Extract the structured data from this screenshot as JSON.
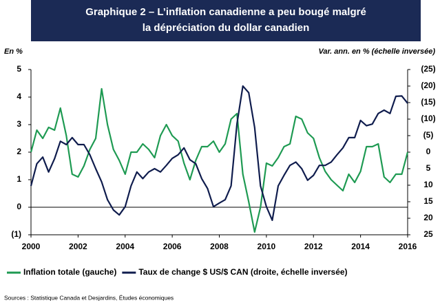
{
  "chart_data": {
    "type": "line",
    "title": [
      "Graphique 2 – L’inflation canadienne a peu bougé malgré",
      "la dépréciation du dollar canadien"
    ],
    "ylabel": "En %",
    "y2label": "Var. ann. en % (échelle inversée)",
    "source": "Sources : Statistique Canada et Desjardins, Études économiques",
    "x": [
      2000,
      2000.25,
      2000.5,
      2000.75,
      2001,
      2001.25,
      2001.5,
      2001.75,
      2002,
      2002.25,
      2002.5,
      2002.75,
      2003,
      2003.25,
      2003.5,
      2003.75,
      2004,
      2004.25,
      2004.5,
      2004.75,
      2005,
      2005.25,
      2005.5,
      2005.75,
      2006,
      2006.25,
      2006.5,
      2006.75,
      2007,
      2007.25,
      2007.5,
      2007.75,
      2008,
      2008.25,
      2008.5,
      2008.75,
      2009,
      2009.25,
      2009.5,
      2009.75,
      2010,
      2010.25,
      2010.5,
      2010.75,
      2011,
      2011.25,
      2011.5,
      2011.75,
      2012,
      2012.25,
      2012.5,
      2012.75,
      2013,
      2013.25,
      2013.5,
      2013.75,
      2014,
      2014.25,
      2014.5,
      2014.75,
      2015,
      2015.25,
      2015.5,
      2015.75,
      2016
    ],
    "series": [
      {
        "name": "Inflation totale (gauche)",
        "color": "#1e9a52",
        "axis": "y",
        "values": [
          2.0,
          2.8,
          2.5,
          2.9,
          2.8,
          3.6,
          2.6,
          1.2,
          1.1,
          1.5,
          2.1,
          2.5,
          4.3,
          3.0,
          2.1,
          1.7,
          1.2,
          2.0,
          2.0,
          2.3,
          2.1,
          1.8,
          2.6,
          3.0,
          2.6,
          2.4,
          1.6,
          1.0,
          1.7,
          2.2,
          2.2,
          2.4,
          2.0,
          2.3,
          3.2,
          3.4,
          1.2,
          0.2,
          -0.9,
          0.0,
          1.6,
          1.5,
          1.8,
          2.2,
          2.3,
          3.3,
          3.2,
          2.7,
          2.5,
          1.8,
          1.3,
          1.0,
          0.8,
          0.6,
          1.2,
          0.9,
          1.3,
          2.2,
          2.2,
          2.3,
          1.1,
          0.9,
          1.2,
          1.2,
          2.0
        ]
      },
      {
        "name": "Taux de change $ US/$ CAN (droite, échelle inversée)",
        "color": "#0f1c4d",
        "axis": "y2",
        "values": [
          10.2,
          3.5,
          1.5,
          6,
          2,
          -3.3,
          -2.3,
          -4.4,
          -2.3,
          -2.3,
          0.8,
          5,
          9,
          14.4,
          17.5,
          19,
          16.5,
          10.2,
          6,
          8,
          6,
          5,
          6,
          4,
          1.9,
          0.8,
          -1.3,
          2.3,
          3.5,
          8,
          11,
          16.5,
          15.4,
          14.4,
          10.2,
          -8.5,
          -20,
          -18,
          -7.5,
          10.2,
          16.5,
          20.6,
          10.2,
          7,
          4,
          3,
          5,
          8.5,
          7,
          4,
          4,
          3,
          0.8,
          -1.3,
          -4.4,
          -4.4,
          -9.6,
          -8,
          -8.5,
          -11.7,
          -12.7,
          -11.7,
          -16.9,
          -17,
          -14.8
        ]
      }
    ],
    "xlim": [
      2000,
      2016
    ],
    "xticks": [
      2000,
      2002,
      2004,
      2006,
      2008,
      2010,
      2012,
      2014,
      2016
    ],
    "ylim": [
      -1,
      5
    ],
    "yticks": [
      {
        "value": -1,
        "label": "(1)"
      },
      0,
      1,
      2,
      3,
      4,
      5
    ],
    "y2lim": [
      -25,
      25
    ],
    "y2_inverted": true,
    "y2ticks": [
      {
        "value": -25,
        "label": "(25)"
      },
      {
        "value": -20,
        "label": "(20)"
      },
      {
        "value": -15,
        "label": "(15)"
      },
      {
        "value": -10,
        "label": "(10)"
      },
      {
        "value": -5,
        "label": "(5)"
      },
      0,
      5,
      10,
      15,
      20,
      25
    ],
    "grid": false,
    "zero_line": true,
    "legend": "bottom"
  }
}
